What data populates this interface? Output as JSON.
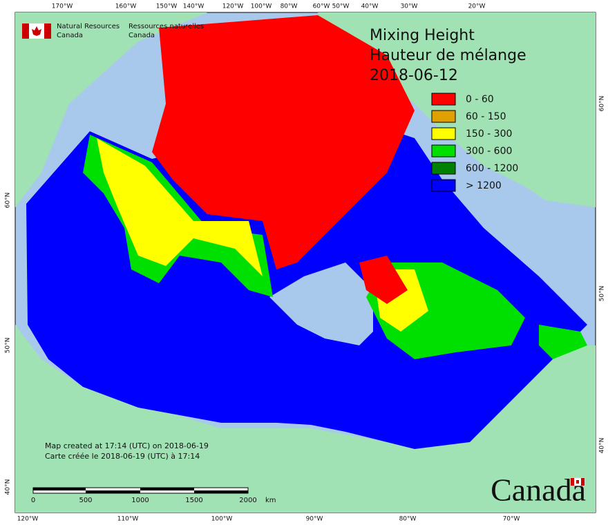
{
  "header": {
    "org_en": [
      "Natural Resources",
      "Canada"
    ],
    "org_fr": [
      "Ressources naturelles",
      "Canada"
    ]
  },
  "title": [
    "Mixing Height",
    "Hauteur de mélange",
    "2018-06-12"
  ],
  "legend": [
    {
      "label": "0 - 60",
      "color": "#ff0000"
    },
    {
      "label": "60 - 150",
      "color": "#e0a000"
    },
    {
      "label": "150 - 300",
      "color": "#ffff00"
    },
    {
      "label": "300 - 600",
      "color": "#00e000"
    },
    {
      "label": "600 - 1200",
      "color": "#008000"
    },
    {
      "label": "> 1200",
      "color": "#0000ff"
    }
  ],
  "graticule": {
    "top": [
      "170°W",
      "160°W",
      "150°W",
      "140°W",
      "120°W",
      "100°W",
      "80°W",
      "60°W",
      "50°W",
      "40°W",
      "30°W",
      "20°W"
    ],
    "bottom": [
      "120°W",
      "110°W",
      "100°W",
      "90°W",
      "80°W",
      "70°W"
    ],
    "left": [
      "60°N",
      "50°N",
      "40°N"
    ],
    "right": [
      "60°N",
      "50°N",
      "40°N"
    ]
  },
  "notes": [
    "Map created at 17:14 (UTC) on 2018-06-19",
    "Carte créée le 2018-06-19 (UTC) à 17:14"
  ],
  "scale_bar": {
    "ticks": [
      "0",
      "500",
      "1000",
      "1500",
      "2000"
    ],
    "unit": "km"
  },
  "wordmark": "Canada"
}
